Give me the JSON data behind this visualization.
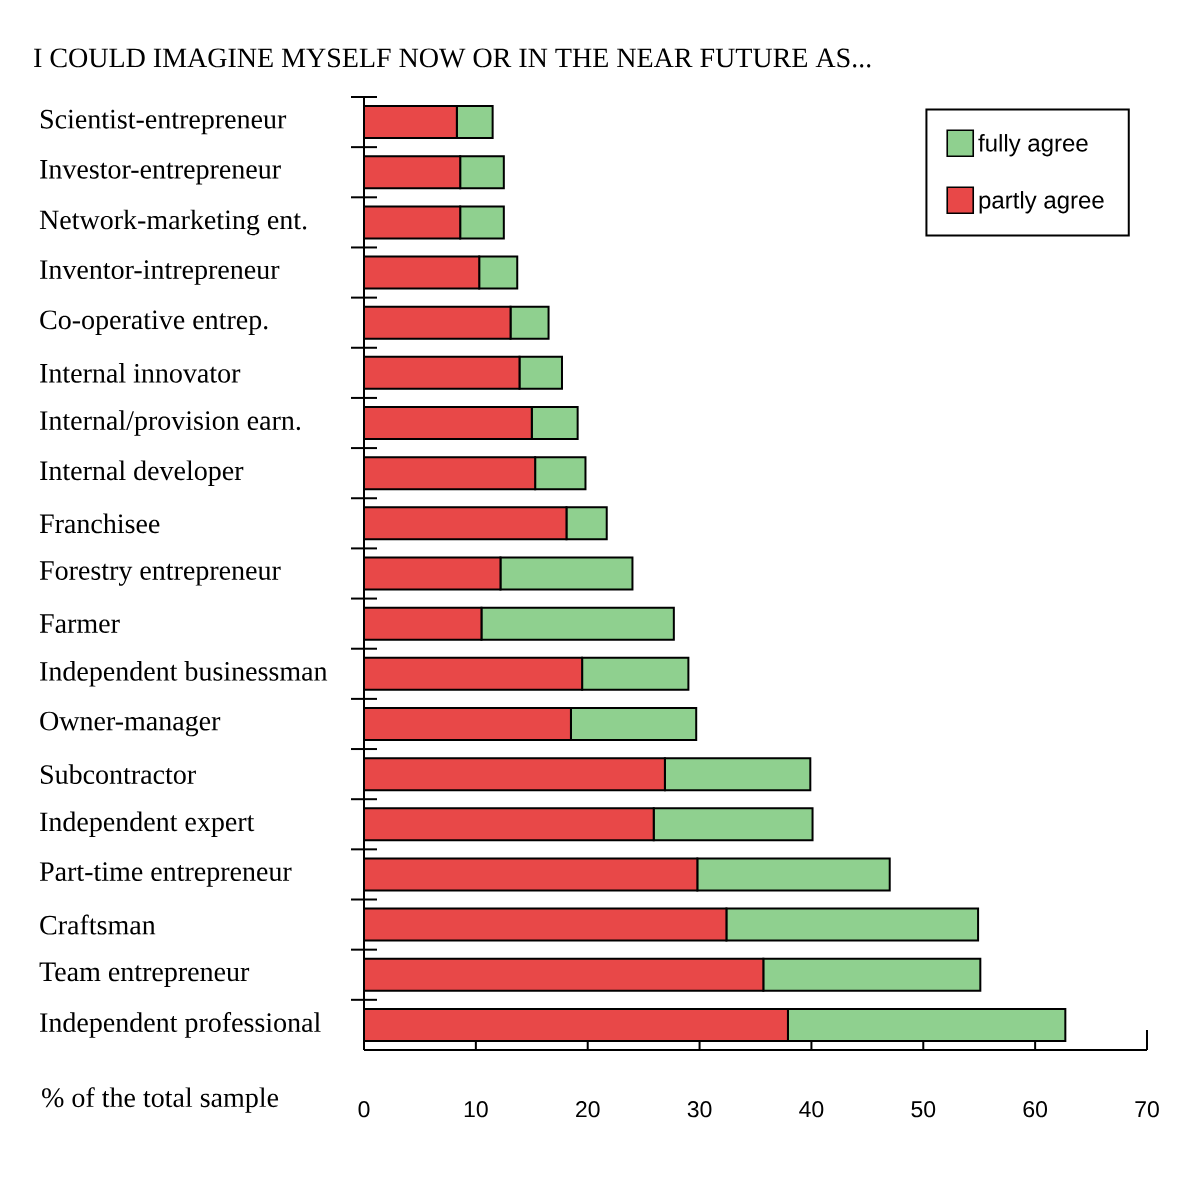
{
  "chart_data": {
    "type": "bar",
    "orientation": "horizontal",
    "stacked": true,
    "title": "I COULD IMAGINE MYSELF NOW OR IN THE NEAR FUTURE AS...",
    "xlabel": "% of the total sample",
    "categories": [
      "Scientist-entrepreneur",
      "Investor-entrepreneur",
      "Network-marketing ent.",
      "Inventor-intrepreneur",
      "Co-operative entrep.",
      "Internal innovator",
      "Internal/provision earn.",
      "Internal developer",
      "Franchisee",
      "Forestry entrepreneur",
      "Farmer",
      "Independent businessman",
      "Owner-manager",
      "Subcontractor",
      "Independent expert",
      "Part-time entrepreneur",
      "Craftsman",
      "Team entrepreneur",
      "Independent professional"
    ],
    "series": [
      {
        "name": "partly agree",
        "color": "#e84848",
        "values": [
          8.3,
          8.6,
          8.6,
          10.3,
          13.1,
          13.9,
          15.0,
          15.3,
          18.1,
          12.2,
          10.5,
          19.5,
          18.5,
          26.9,
          25.9,
          29.8,
          32.4,
          35.7,
          37.9
        ]
      },
      {
        "name": "fully agree",
        "color": "#8fd08f",
        "values": [
          3.2,
          3.9,
          3.9,
          3.4,
          3.4,
          3.8,
          4.1,
          4.5,
          3.6,
          11.8,
          17.2,
          9.5,
          11.2,
          13.0,
          14.2,
          17.2,
          22.5,
          19.4,
          24.8
        ]
      }
    ],
    "xlim": [
      0,
      70
    ],
    "xticks": [
      0,
      10,
      20,
      30,
      40,
      50,
      60,
      70
    ],
    "legend": "top right"
  }
}
